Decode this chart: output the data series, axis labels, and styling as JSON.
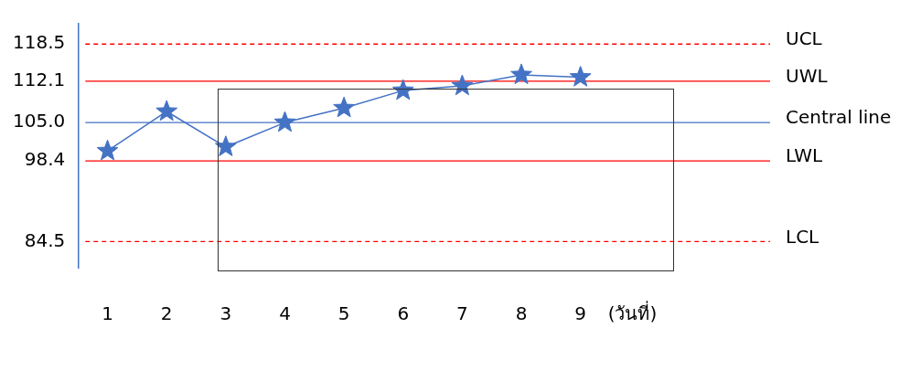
{
  "chart_data": {
    "type": "line",
    "xlabel": "(วันที่)",
    "categories": [
      "1",
      "2",
      "3",
      "4",
      "5",
      "6",
      "7",
      "8",
      "9"
    ],
    "series": [
      {
        "color": "#4472c4",
        "values": [
          100.1,
          106.9,
          100.8,
          105.0,
          107.5,
          110.5,
          111.3,
          113.2,
          112.8
        ]
      }
    ],
    "ylim": [
      80,
      122
    ],
    "yticks": [
      {
        "value": 84.5,
        "label": "84.5"
      },
      {
        "value": 98.4,
        "label": "98.4"
      },
      {
        "value": 105,
        "label": "105.0"
      },
      {
        "value": 112.1,
        "label": "112.1"
      },
      {
        "value": 118.5,
        "label": "118.5"
      }
    ],
    "ref_lines": [
      {
        "axis": "y",
        "value": 118.5,
        "label": "UCL",
        "color": "#ff0000",
        "line_style": "dashed"
      },
      {
        "axis": "y",
        "value": 112.1,
        "label": "UWL",
        "color": "#ff0000",
        "line_style": "solid"
      },
      {
        "axis": "y",
        "value": 105,
        "label": "Central line",
        "color": "#4472c4",
        "line_style": "solid"
      },
      {
        "axis": "y",
        "value": 98.4,
        "label": "LWL",
        "color": "#ff0000",
        "line_style": "solid"
      },
      {
        "axis": "y",
        "value": 84.5,
        "label": "LCL",
        "color": "#ff0000",
        "line_style": "dashed"
      }
    ],
    "grid": false,
    "legend": false,
    "marker": "star",
    "line_style": "solid"
  }
}
